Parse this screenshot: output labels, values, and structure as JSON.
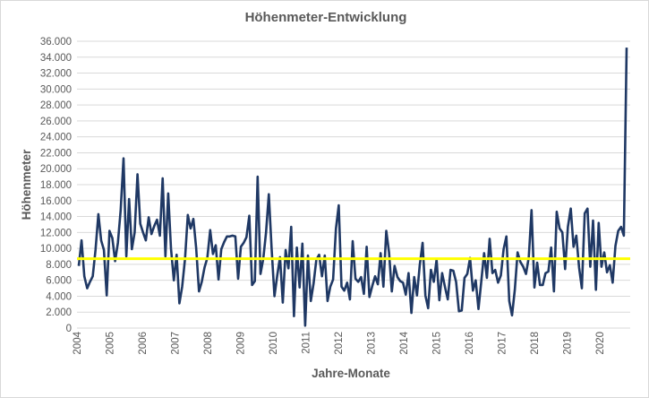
{
  "chart_data": {
    "type": "line",
    "title": "Höhenmeter-Entwicklung",
    "xlabel": "Jahre-Monate",
    "ylabel": "Höhenmeter",
    "ylim": [
      0,
      36000
    ],
    "y_tick_values": [
      0,
      2000,
      4000,
      6000,
      8000,
      10000,
      12000,
      14000,
      16000,
      18000,
      20000,
      22000,
      24000,
      26000,
      28000,
      30000,
      32000,
      34000,
      36000
    ],
    "y_tick_labels": [
      "0",
      "2.000",
      "4.000",
      "6.000",
      "8.000",
      "10.000",
      "12.000",
      "14.000",
      "16.000",
      "18.000",
      "20.000",
      "22.000",
      "24.000",
      "26.000",
      "28.000",
      "30.000",
      "32.000",
      "34.000",
      "36.000"
    ],
    "x_tick_labels": [
      "2004",
      "2005",
      "2006",
      "2007",
      "2008",
      "2009",
      "2010",
      "2011",
      "2012",
      "2013",
      "2014",
      "2015",
      "2016",
      "2017",
      "2018",
      "2019",
      "2020"
    ],
    "grid": true,
    "legend": "none",
    "series": [
      {
        "color": "#1f3864",
        "values": [
          7800,
          11000,
          6500,
          5000,
          5800,
          6500,
          9800,
          14300,
          11000,
          9800,
          4100,
          12200,
          11300,
          8400,
          10700,
          14800,
          21300,
          9000,
          16200,
          9900,
          12000,
          19300,
          13100,
          12000,
          11000,
          13900,
          11800,
          12800,
          13600,
          11600,
          18800,
          9000,
          16900,
          10000,
          6000,
          9200,
          3100,
          5200,
          8700,
          14200,
          12500,
          13700,
          10100,
          4600,
          5800,
          7600,
          8800,
          12300,
          9300,
          10400,
          6100,
          9900,
          10800,
          11500,
          11500,
          11600,
          11500,
          6200,
          10200,
          10700,
          11400,
          14100,
          5400,
          5900,
          19000,
          6800,
          8700,
          12000,
          16800,
          10000,
          4000,
          6600,
          8900,
          3200,
          9800,
          7500,
          12700,
          1500,
          10100,
          5100,
          10600,
          300,
          9100,
          3400,
          5600,
          8600,
          9200,
          6500,
          9100,
          3400,
          5200,
          6100,
          12500,
          15400,
          5200,
          4700,
          5700,
          3600,
          10900,
          6200,
          5800,
          6400,
          4300,
          10200,
          3900,
          5300,
          6500,
          5500,
          9400,
          5200,
          12200,
          9500,
          4600,
          7800,
          6400,
          5900,
          5700,
          4200,
          6900,
          1900,
          6400,
          4100,
          7900,
          10700,
          4100,
          2500,
          7300,
          5800,
          8600,
          3500,
          6900,
          5200,
          3600,
          7300,
          7200,
          5800,
          2100,
          2200,
          6300,
          6800,
          8800,
          4700,
          6000,
          2400,
          5800,
          9400,
          6300,
          11200,
          6900,
          7300,
          5700,
          6600,
          9900,
          11500,
          3400,
          1600,
          4800,
          9500,
          8300,
          7700,
          6800,
          8900,
          14800,
          5100,
          8200,
          5400,
          5400,
          6900,
          7100,
          10100,
          4600,
          14600,
          12500,
          12000,
          7400,
          12700,
          15000,
          10200,
          11600,
          7600,
          5000,
          14400,
          15000,
          7700,
          13500,
          4800,
          13200,
          7700,
          9500,
          7000,
          7900,
          5700,
          10300,
          12200,
          12700,
          11600,
          35200
        ]
      },
      {
        "color": "#ffff00",
        "values": [
          8700,
          8700
        ]
      }
    ]
  }
}
